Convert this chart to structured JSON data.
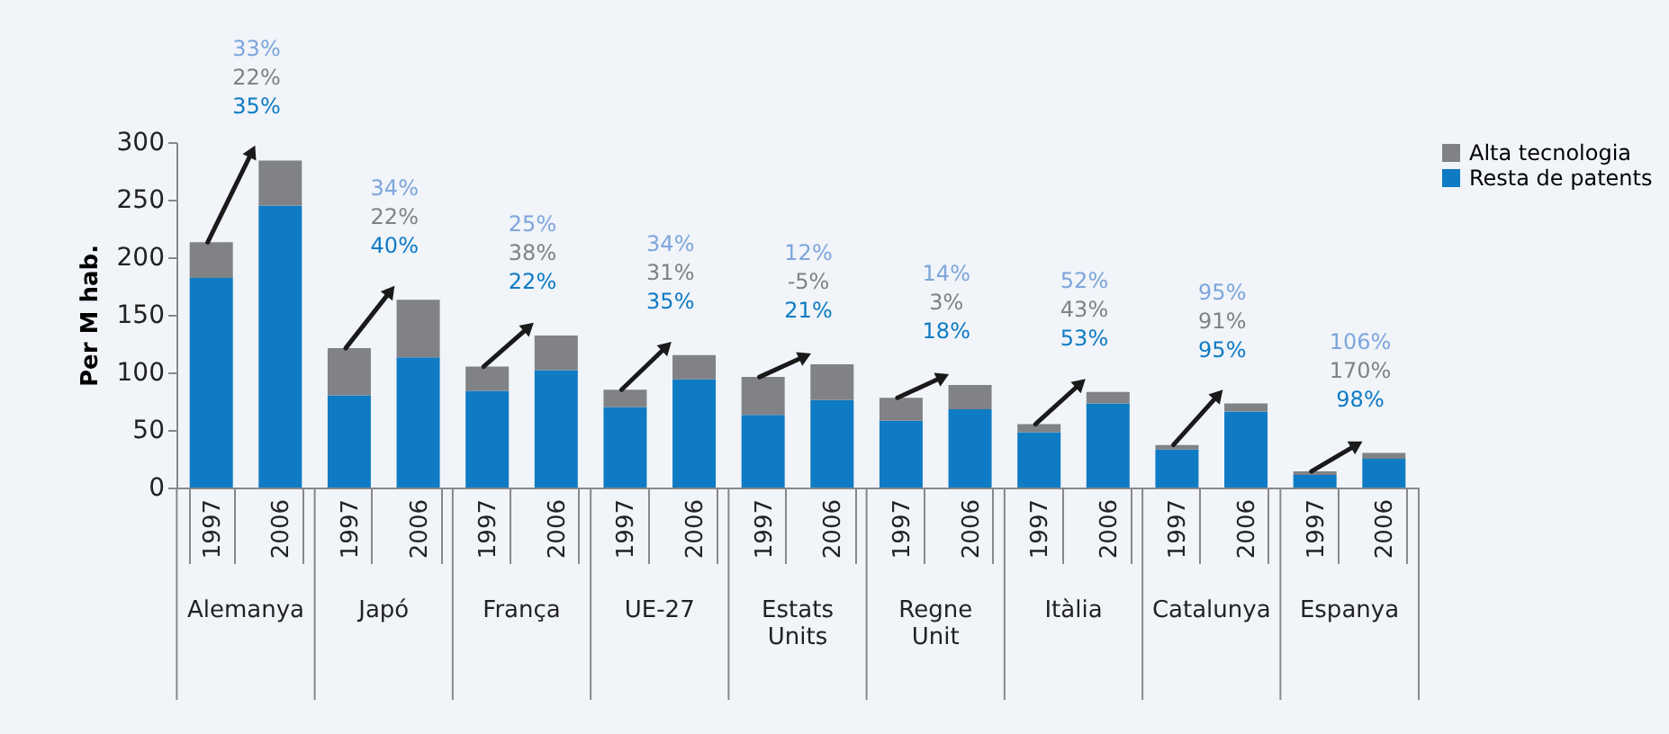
{
  "chart_data": {
    "type": "bar",
    "stacked": true,
    "ylabel": "Per M hab.",
    "categories": [
      "1997",
      "2006",
      "1997",
      "2006",
      "1997",
      "2006",
      "1997",
      "2006",
      "1997",
      "2006",
      "1997",
      "2006",
      "1997",
      "2006",
      "1997",
      "2006",
      "1997",
      "2006"
    ],
    "series": [
      {
        "name": "Resta de patents",
        "color": "#0f7bc4",
        "values": [
          182,
          245,
          80,
          113,
          84,
          102,
          70,
          94,
          63,
          76,
          58,
          68,
          48,
          73,
          33,
          66,
          11,
          25
        ]
      },
      {
        "name": "Alta tecnologia",
        "color": "#808285",
        "values": [
          31,
          39,
          41,
          50,
          21,
          30,
          15,
          21,
          33,
          31,
          20,
          21,
          7,
          10,
          4,
          7,
          3,
          5
        ]
      }
    ],
    "ylim": [
      0,
      300
    ],
    "yticks": [
      0,
      50,
      100,
      150,
      200,
      250,
      300
    ],
    "grid": false,
    "legend": "right",
    "annotations": [
      "Alemanya",
      "Japó",
      "França",
      "UE-27",
      "Estats\nUnits",
      "Regne\nUnit",
      "Itàlia",
      "Catalunya",
      "Espanya",
      "33%",
      "22%",
      "35%",
      "34%",
      "22%",
      "40%",
      "25%",
      "38%",
      "22%",
      "34%",
      "31%",
      "35%",
      "12%",
      "-5%",
      "21%",
      "14%",
      "3%",
      "18%",
      "52%",
      "43%",
      "53%",
      "95%",
      "91%",
      "95%",
      "106%",
      "170%",
      "98%"
    ]
  }
}
